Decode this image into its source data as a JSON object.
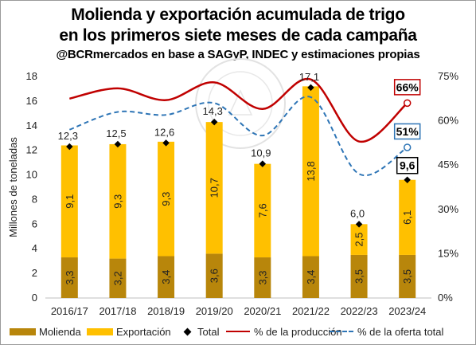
{
  "title_line1": "Molienda y exportación acumulada de trigo",
  "title_line2": "en los primeros siete meses de cada campaña",
  "subtitle": "@BCRmercados en base a SAGyP, INDEC y estimaciones propias",
  "watermark_text": "BOLSA DE COMERCIO DE ROSARIO",
  "colors": {
    "molienda": "#B8860B",
    "exportacion": "#FFC000",
    "total": "#000000",
    "produccion": "#C00000",
    "oferta": "#2E75B6"
  },
  "chart_data": {
    "type": "bar",
    "stacked": true,
    "categories": [
      "2016/17",
      "2017/18",
      "2018/19",
      "2019/20",
      "2020/21",
      "2021/22",
      "2022/23",
      "2023/24"
    ],
    "series": [
      {
        "name": "Molienda",
        "values": [
          3.3,
          3.2,
          3.4,
          3.6,
          3.3,
          3.4,
          3.5,
          3.5
        ],
        "labels": [
          "3,3",
          "3,2",
          "3,4",
          "3,6",
          "3,3",
          "3,4",
          "3,5",
          "3,5"
        ]
      },
      {
        "name": "Exportación",
        "values": [
          9.1,
          9.3,
          9.3,
          10.7,
          7.6,
          13.8,
          2.5,
          6.1
        ],
        "labels": [
          "9,1",
          "9,3",
          "9,3",
          "10,7",
          "7,6",
          "13,8",
          "2,5",
          "6,1"
        ]
      }
    ],
    "total": {
      "name": "Total",
      "values": [
        12.3,
        12.5,
        12.6,
        14.3,
        10.9,
        17.1,
        6.0,
        9.6
      ],
      "labels": [
        "12,3",
        "12,5",
        "12,6",
        "14,3",
        "10,9",
        "17,1",
        "6,0",
        "9,6"
      ]
    },
    "lines": [
      {
        "name": "% de la producción",
        "axis": "right",
        "style": "solid",
        "values": [
          67.5,
          71,
          67,
          73,
          64,
          74,
          53,
          66
        ]
      },
      {
        "name": "% de la oferta total",
        "axis": "right",
        "style": "dashed",
        "values": [
          57,
          63,
          62,
          66,
          55,
          68,
          42,
          51
        ]
      }
    ],
    "callouts": [
      {
        "series": "% de la producción",
        "category": "2023/24",
        "label": "66%"
      },
      {
        "series": "% de la oferta total",
        "category": "2023/24",
        "label": "51%"
      },
      {
        "series": "Total",
        "category": "2023/24",
        "label": "9,6"
      }
    ],
    "ylabel": "Millones de toneladas",
    "ylim": [
      0,
      18
    ],
    "yticks": [
      "0",
      "2",
      "4",
      "6",
      "8",
      "10",
      "12",
      "14",
      "16",
      "18"
    ],
    "y2lim": [
      0,
      75
    ],
    "y2ticks": [
      "0%",
      "15%",
      "30%",
      "45%",
      "60%",
      "75%"
    ],
    "legend_position": "bottom",
    "grid": false
  }
}
